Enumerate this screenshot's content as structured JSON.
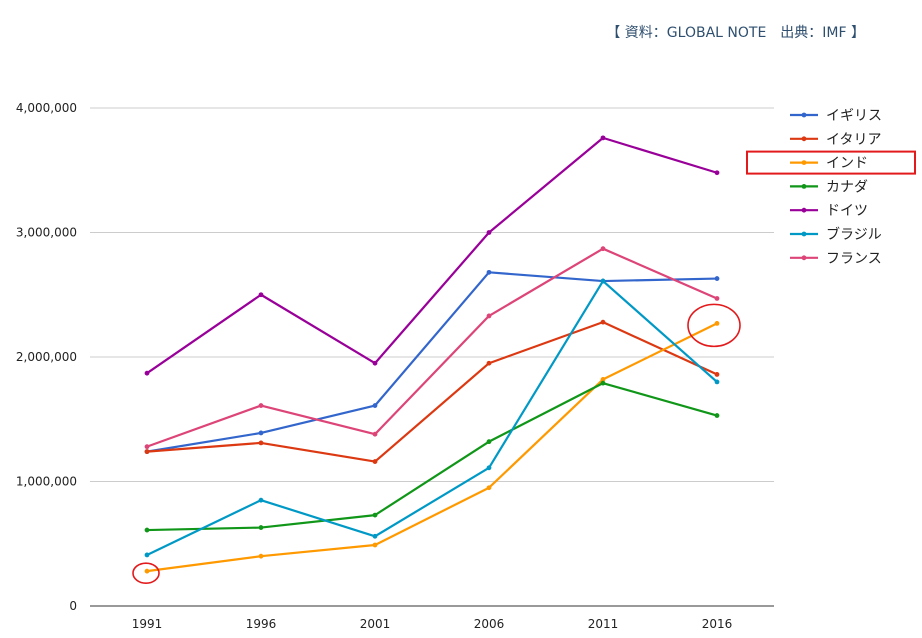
{
  "source_note": "【 資料：GLOBAL NOTE　出典：IMF 】",
  "chart_data": {
    "type": "line",
    "title": "",
    "xlabel": "",
    "ylabel": "",
    "categories": [
      "1991",
      "1996",
      "2001",
      "2006",
      "2011",
      "2016"
    ],
    "ylim": [
      0,
      4000000
    ],
    "yticks": [
      {
        "value": 0,
        "label": "0"
      },
      {
        "value": 1000000,
        "label": "1,000,000"
      },
      {
        "value": 2000000,
        "label": "2,000,000"
      },
      {
        "value": 3000000,
        "label": "3,000,000"
      },
      {
        "value": 4000000,
        "label": "4,000,000"
      }
    ],
    "grid": true,
    "legend_position": "right",
    "series": [
      {
        "name": "イギリス",
        "color": "#3366cc",
        "values": [
          1240000,
          1390000,
          1610000,
          2680000,
          2610000,
          2630000
        ]
      },
      {
        "name": "イタリア",
        "color": "#dc3912",
        "values": [
          1240000,
          1310000,
          1160000,
          1950000,
          2280000,
          1860000
        ]
      },
      {
        "name": "インド",
        "color": "#ff9900",
        "values": [
          280000,
          400000,
          490000,
          950000,
          1820000,
          2270000
        ]
      },
      {
        "name": "カナダ",
        "color": "#109618",
        "values": [
          610000,
          630000,
          730000,
          1320000,
          1790000,
          1530000
        ]
      },
      {
        "name": "ドイツ",
        "color": "#990099",
        "values": [
          1870000,
          2500000,
          1950000,
          3000000,
          3760000,
          3480000
        ]
      },
      {
        "name": "ブラジル",
        "color": "#0099c6",
        "values": [
          410000,
          850000,
          560000,
          1110000,
          2610000,
          1800000
        ]
      },
      {
        "name": "フランス",
        "color": "#dd4477",
        "values": [
          1280000,
          1610000,
          1380000,
          2330000,
          2870000,
          2470000
        ]
      }
    ],
    "annotations": {
      "highlight_series": "インド",
      "circle_color": "#e31a1c",
      "circled_points": [
        {
          "series": "インド",
          "category": "1991"
        },
        {
          "series": "インド",
          "category": "2016"
        }
      ]
    }
  }
}
